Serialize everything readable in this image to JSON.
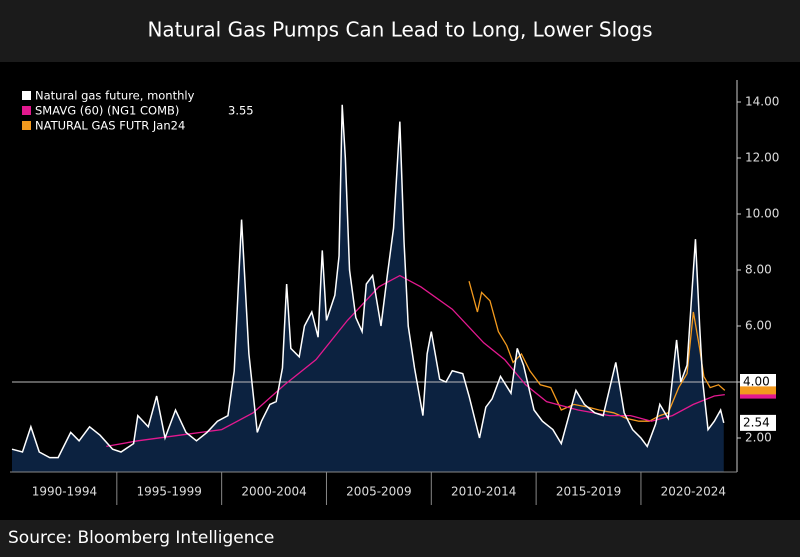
{
  "title": "Natural Gas Pumps Can Lead to Long, Lower Slogs",
  "source": "Source: Bloomberg Intelligence",
  "chart_data": {
    "type": "line",
    "series": [
      {
        "name": "Natural gas future, monthly",
        "color": "#ffffff",
        "fill": "#0c2240",
        "x": [
          1990.0,
          1990.5,
          1990.9,
          1991.3,
          1991.8,
          1992.2,
          1992.8,
          1993.2,
          1993.7,
          1994.2,
          1994.8,
          1995.2,
          1995.8,
          1996.0,
          1996.5,
          1996.9,
          1997.3,
          1997.8,
          1998.3,
          1998.8,
          1999.3,
          1999.8,
          2000.3,
          2000.6,
          2000.95,
          2001.3,
          2001.7,
          2001.9,
          2002.3,
          2002.6,
          2002.9,
          2003.1,
          2003.3,
          2003.7,
          2003.95,
          2004.3,
          2004.6,
          2004.8,
          2005.0,
          2005.4,
          2005.6,
          2005.75,
          2005.9,
          2006.1,
          2006.4,
          2006.7,
          2006.9,
          2007.2,
          2007.6,
          2007.9,
          2008.2,
          2008.5,
          2008.7,
          2008.9,
          2009.2,
          2009.6,
          2009.8,
          2010.0,
          2010.4,
          2010.7,
          2011.0,
          2011.5,
          2011.8,
          2012.3,
          2012.6,
          2012.9,
          2013.3,
          2013.8,
          2014.1,
          2014.4,
          2014.9,
          2015.3,
          2015.8,
          2016.2,
          2016.6,
          2016.9,
          2017.3,
          2017.8,
          2018.2,
          2018.8,
          2019.2,
          2019.6,
          2020.0,
          2020.3,
          2020.7,
          2020.9,
          2021.3,
          2021.7,
          2021.9,
          2022.2,
          2022.6,
          2022.8,
          2022.95,
          2023.2,
          2023.5,
          2023.8,
          2023.95
        ],
        "values": [
          1.6,
          1.5,
          2.4,
          1.5,
          1.3,
          1.3,
          2.2,
          1.9,
          2.4,
          2.1,
          1.6,
          1.5,
          1.8,
          2.8,
          2.4,
          3.5,
          2.0,
          3.0,
          2.2,
          1.9,
          2.2,
          2.6,
          2.8,
          4.4,
          9.8,
          5.0,
          2.2,
          2.6,
          3.2,
          3.3,
          4.5,
          7.5,
          5.2,
          4.9,
          6.0,
          6.5,
          5.6,
          8.7,
          6.2,
          7.1,
          8.5,
          13.9,
          12.0,
          8.0,
          6.3,
          5.8,
          7.5,
          7.8,
          6.0,
          7.8,
          9.5,
          13.3,
          9.0,
          6.0,
          4.5,
          2.8,
          5.0,
          5.8,
          4.1,
          4.0,
          4.4,
          4.3,
          3.5,
          2.0,
          3.1,
          3.4,
          4.2,
          3.6,
          5.2,
          4.6,
          3.0,
          2.6,
          2.3,
          1.8,
          2.9,
          3.7,
          3.2,
          2.9,
          2.8,
          4.7,
          2.9,
          2.3,
          2.0,
          1.7,
          2.5,
          3.2,
          2.7,
          5.5,
          4.0,
          4.6,
          9.1,
          6.0,
          4.0,
          2.3,
          2.6,
          3.0,
          2.54
        ],
        "last_label": "2.54"
      },
      {
        "name": "SMAVG (60) (NG1 COMB)",
        "color": "#e3198f",
        "x": [
          1994.5,
          1996,
          1998,
          2000,
          2001.5,
          2003,
          2004.5,
          2006,
          2007.5,
          2008.5,
          2009.5,
          2011,
          2012.5,
          2013.5,
          2014.5,
          2015.5,
          2017,
          2018.5,
          2019.5,
          2020.5,
          2021.5,
          2022.5,
          2023.5,
          2024
        ],
        "values": [
          1.7,
          1.9,
          2.1,
          2.3,
          2.9,
          3.9,
          4.8,
          6.2,
          7.4,
          7.8,
          7.4,
          6.6,
          5.4,
          4.8,
          3.9,
          3.3,
          3.0,
          2.8,
          2.8,
          2.6,
          2.8,
          3.2,
          3.5,
          3.55
        ],
        "last_label": "3.55"
      },
      {
        "name": "NATURAL GAS FUTR Jan24",
        "color": "#f39a1e",
        "x": [
          2011.8,
          2012.2,
          2012.4,
          2012.8,
          2013.2,
          2013.6,
          2013.9,
          2014.3,
          2014.7,
          2015.2,
          2015.7,
          2016.2,
          2016.8,
          2017.5,
          2018.0,
          2018.7,
          2019.3,
          2019.9,
          2020.4,
          2020.9,
          2021.3,
          2021.8,
          2022.2,
          2022.5,
          2022.8,
          2023.0,
          2023.3,
          2023.7,
          2024.0
        ],
        "values": [
          7.6,
          6.5,
          7.2,
          6.9,
          5.8,
          5.3,
          4.7,
          5.0,
          4.4,
          3.9,
          3.8,
          3.0,
          3.2,
          3.1,
          3.0,
          2.9,
          2.7,
          2.6,
          2.6,
          2.8,
          2.9,
          3.8,
          4.3,
          6.5,
          5.2,
          4.2,
          3.8,
          3.9,
          3.7
        ]
      }
    ],
    "reference_line": {
      "value": 4,
      "label": "4.00"
    },
    "xlim": [
      1990,
      2024.2
    ],
    "xticks": [
      {
        "value": 1992.5,
        "label": "1990-1994"
      },
      {
        "value": 1997.5,
        "label": "1995-1999"
      },
      {
        "value": 2002.5,
        "label": "2000-2004"
      },
      {
        "value": 2007.5,
        "label": "2005-2009"
      },
      {
        "value": 2012.5,
        "label": "2010-2014"
      },
      {
        "value": 2017.5,
        "label": "2015-2019"
      },
      {
        "value": 2022.5,
        "label": "2020-2024"
      }
    ],
    "ylim": [
      1.2,
      14.6
    ],
    "yticks": [
      {
        "value": 2,
        "label": "2.00"
      },
      {
        "value": 4,
        "label": "4.00"
      },
      {
        "value": 6,
        "label": "6.00"
      },
      {
        "value": 8,
        "label": "8.00"
      },
      {
        "value": 10,
        "label": "10.00"
      },
      {
        "value": 12,
        "label": "12.00"
      },
      {
        "value": 14,
        "label": "14.00"
      }
    ],
    "legend": "top-left"
  }
}
